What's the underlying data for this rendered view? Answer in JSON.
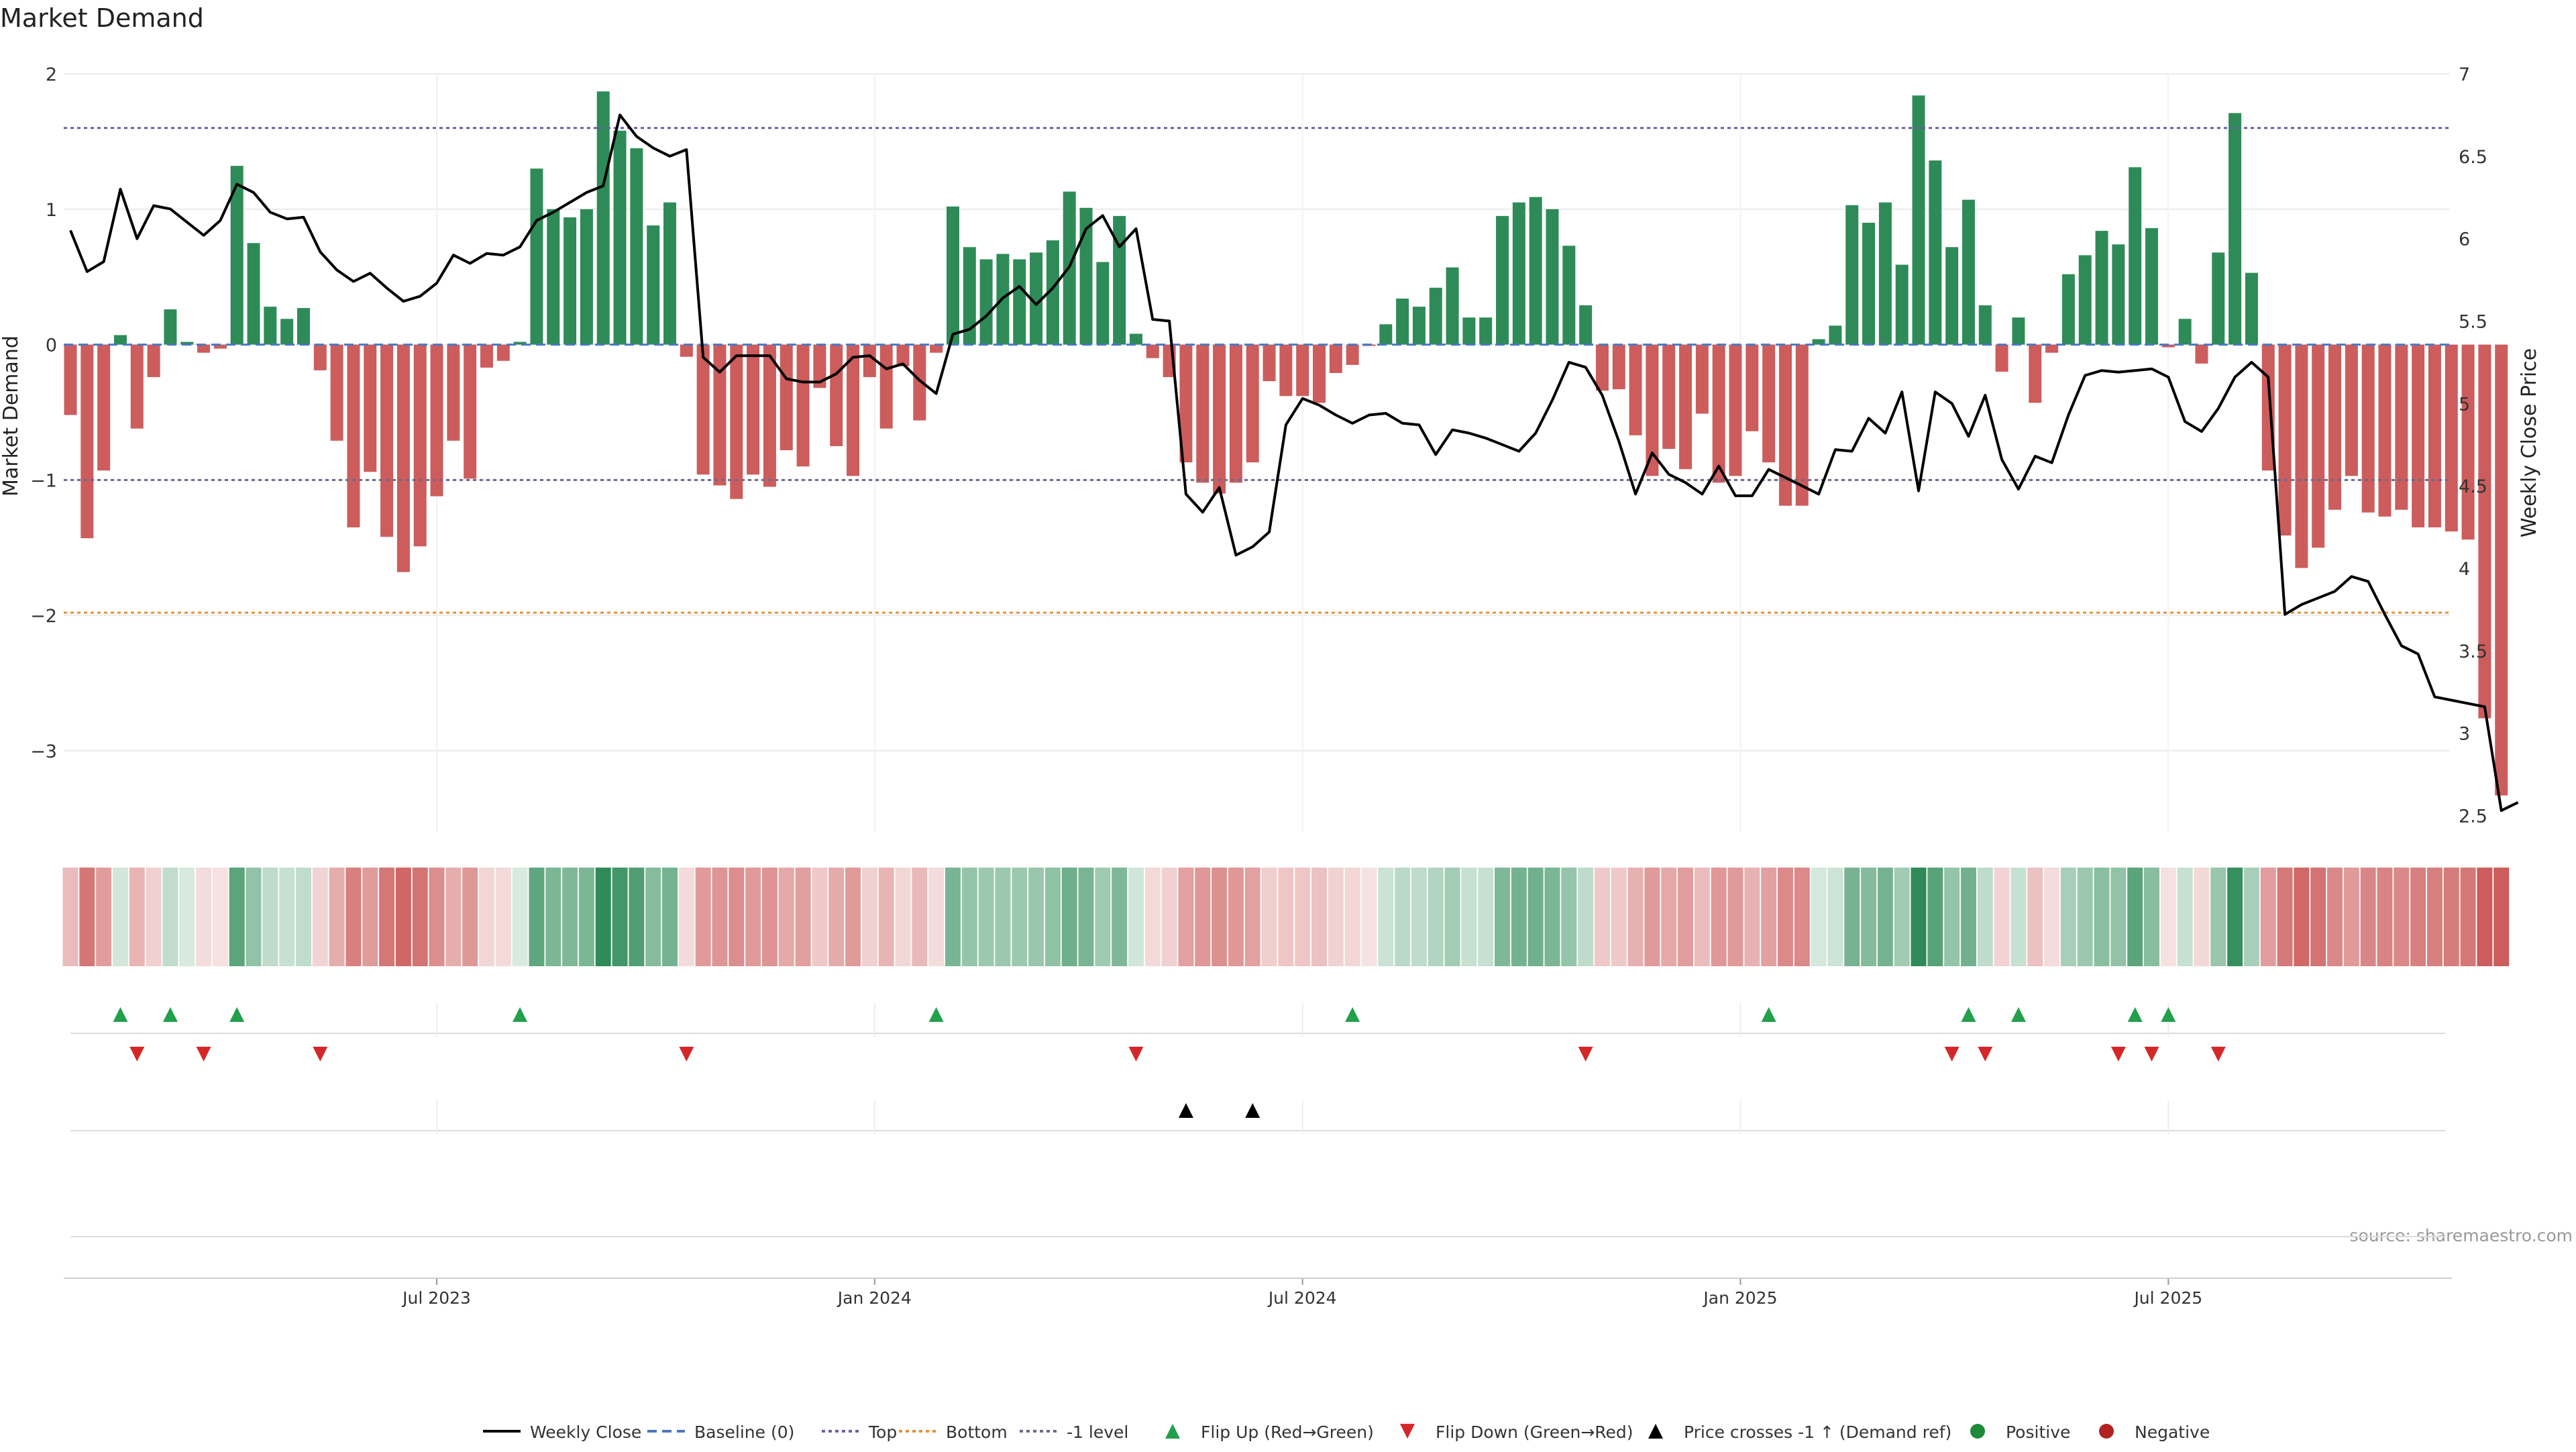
{
  "chart_data": {
    "type": "bar",
    "title": "Market Demand",
    "ylabel_left": "Market Demand",
    "ylabel_right": "Weekly Close Price",
    "source_text": "source: sharemaestro.com",
    "ylim_left": [
      -3.6,
      2.0
    ],
    "ylim_right": [
      2.4,
      7.0
    ],
    "yticks_left": [
      2,
      1,
      0,
      -1,
      -2,
      -3
    ],
    "yticks_left_labels": [
      "2",
      "1",
      "0",
      "−1",
      "−2",
      "−3"
    ],
    "yticks_right": [
      7,
      6.5,
      6,
      5.5,
      5,
      4.5,
      4,
      3.5,
      3,
      2.5
    ],
    "yticks_right_labels": [
      "7",
      "6.5",
      "6",
      "5.5",
      "5",
      "4.5",
      "4",
      "3.5",
      "3",
      "2.5"
    ],
    "xtick_labels": [
      "Jul 2023",
      "Jan 2024",
      "Jul 2024",
      "Jan 2025",
      "Jul 2025"
    ],
    "xtick_indices": [
      22,
      48.3,
      74,
      100.3,
      126
    ],
    "levels": {
      "top": 1.6,
      "bottom": -1.98,
      "minus_one": -1.0,
      "baseline": 0
    },
    "grid": true,
    "legend_position": "bottom-center",
    "colors": {
      "positive_bar": "#2e8b57",
      "negative_bar": "#cd5c5c",
      "close_line": "#000000",
      "top_line": "#6b5fa6",
      "bottom_line": "#e69138",
      "flip_up": "#22a04b",
      "flip_down": "#d62728",
      "cross_marker": "#000000",
      "positive_dot": "#1f8a3a",
      "negative_dot": "#b22222"
    },
    "series": [
      {
        "name": "Market Demand",
        "values": [
          -0.52,
          -1.43,
          -0.93,
          0.07,
          -0.62,
          -0.24,
          0.26,
          0.02,
          -0.06,
          -0.03,
          1.32,
          0.75,
          0.28,
          0.19,
          0.27,
          -0.19,
          -0.71,
          -1.35,
          -0.94,
          -1.42,
          -1.68,
          -1.49,
          -1.12,
          -0.71,
          -0.99,
          -0.17,
          -0.12,
          0.02,
          1.3,
          1.0,
          0.94,
          1.0,
          1.87,
          1.58,
          1.45,
          0.88,
          1.05,
          -0.09,
          -0.96,
          -1.04,
          -1.14,
          -0.96,
          -1.05,
          -0.78,
          -0.9,
          -0.32,
          -0.75,
          -0.97,
          -0.24,
          -0.62,
          -0.16,
          -0.56,
          -0.06,
          1.02,
          0.72,
          0.63,
          0.67,
          0.63,
          0.68,
          0.77,
          1.13,
          1.01,
          0.61,
          0.95,
          0.08,
          -0.1,
          -0.24,
          -0.87,
          -1.02,
          -1.1,
          -1.02,
          -0.87,
          -0.27,
          -0.38,
          -0.38,
          -0.43,
          -0.21,
          -0.15,
          -0.01,
          0.15,
          0.34,
          0.28,
          0.42,
          0.57,
          0.2,
          0.2,
          0.95,
          1.05,
          1.09,
          1.0,
          0.73,
          0.29,
          -0.34,
          -0.33,
          -0.67,
          -0.97,
          -0.77,
          -0.92,
          -0.51,
          -1.02,
          -0.97,
          -0.64,
          -0.87,
          -1.19,
          -1.19,
          0.04,
          0.14,
          1.03,
          0.9,
          1.05,
          0.59,
          1.84,
          1.36,
          0.72,
          1.07,
          0.29,
          -0.2,
          0.2,
          -0.43,
          -0.06,
          0.52,
          0.66,
          0.84,
          0.74,
          1.31,
          0.86,
          -0.02,
          0.19,
          -0.14,
          0.68,
          1.71,
          0.53,
          -0.93,
          -1.41,
          -1.65,
          -1.5,
          -1.22,
          -0.97,
          -1.24,
          -1.27,
          -1.22,
          -1.35,
          -1.35,
          -1.38,
          -1.44,
          -2.76,
          -3.33
        ]
      },
      {
        "name": "Weekly Close",
        "values": [
          6.05,
          5.8,
          5.86,
          6.3,
          6.0,
          6.2,
          6.18,
          6.1,
          6.02,
          6.11,
          6.33,
          6.28,
          6.16,
          6.12,
          6.13,
          5.92,
          5.81,
          5.74,
          5.79,
          5.7,
          5.62,
          5.65,
          5.73,
          5.9,
          5.85,
          5.91,
          5.9,
          5.95,
          6.11,
          6.16,
          6.22,
          6.28,
          6.32,
          6.75,
          6.62,
          6.55,
          6.5,
          6.54,
          5.28,
          5.19,
          5.29,
          5.29,
          5.29,
          5.15,
          5.13,
          5.13,
          5.18,
          5.28,
          5.29,
          5.21,
          5.24,
          5.14,
          5.06,
          5.42,
          5.45,
          5.53,
          5.64,
          5.71,
          5.6,
          5.7,
          5.83,
          6.06,
          6.14,
          5.95,
          6.06,
          5.51,
          5.5,
          4.45,
          4.34,
          4.49,
          4.08,
          4.13,
          4.22,
          4.87,
          5.03,
          4.99,
          4.93,
          4.88,
          4.93,
          4.94,
          4.88,
          4.87,
          4.69,
          4.84,
          4.82,
          4.79,
          4.75,
          4.71,
          4.82,
          5.02,
          5.25,
          5.22,
          5.05,
          4.77,
          4.45,
          4.7,
          4.57,
          4.52,
          4.45,
          4.62,
          4.44,
          4.44,
          4.6,
          4.55,
          4.5,
          4.45,
          4.72,
          4.71,
          4.91,
          4.82,
          5.07,
          4.47,
          5.07,
          5.0,
          4.8,
          5.05,
          4.66,
          4.48,
          4.68,
          4.64,
          4.93,
          5.17,
          5.2,
          5.19,
          5.2,
          5.21,
          5.16,
          4.89,
          4.83,
          4.97,
          5.16,
          5.25,
          5.16,
          3.72,
          3.78,
          3.82,
          3.86,
          3.95,
          3.92,
          3.72,
          3.53,
          3.48,
          3.22,
          3.2,
          3.18,
          3.16,
          2.53,
          2.58
        ]
      }
    ],
    "flip_up_indices": [
      3,
      6,
      10,
      27,
      52,
      77,
      102,
      114,
      117,
      124,
      126
    ],
    "flip_down_indices": [
      4,
      8,
      15,
      37,
      64,
      91,
      113,
      115,
      123,
      125,
      129
    ],
    "price_cross_indices": [
      67,
      71
    ],
    "legend_entries": [
      "Weekly Close",
      "Baseline (0)",
      "Top",
      "Bottom",
      "-1 level",
      "Flip Up (Red→Green)",
      "Flip Down (Green→Red)",
      "Price crosses -1 ↑ (Demand ref)",
      "Positive",
      "Negative"
    ]
  }
}
